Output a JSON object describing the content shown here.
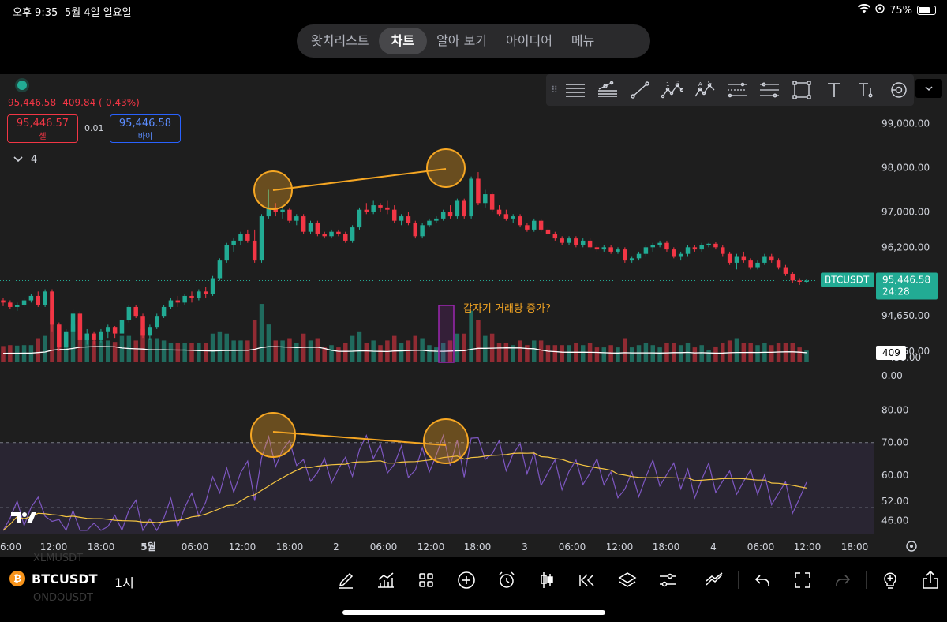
{
  "status_bar": {
    "time": "오후 9:35",
    "date": "5월 4일 일요일",
    "battery": "75%",
    "battery_level": 0.75
  },
  "top_nav": {
    "tabs": [
      "왓치리스트",
      "차트",
      "알아 보기",
      "아이디어",
      "메뉴"
    ],
    "active": "차트"
  },
  "quote": {
    "last": "95,446.58",
    "change": "-409.84 (-0.43%)",
    "sell_price": "95,446.57",
    "sell_label": "셀",
    "buy_price": "95,446.58",
    "buy_label": "바이",
    "spread": "0.01",
    "indicators_count": "4"
  },
  "symbol": {
    "name": "BTCUSDT",
    "interval": "1시",
    "ghost_above": "XLMUSDT",
    "ghost_below": "ONDOUSDT"
  },
  "icons": {
    "drawing_toolbar": [
      "grip-icon",
      "horizontal-lines-icon",
      "fib-retracement-icon",
      "trend-line-icon",
      "elliott-wave-icon",
      "abcd-pattern-icon",
      "parallel-channel-icon",
      "price-range-icon",
      "rectangle-icon",
      "text-icon",
      "price-note-icon",
      "eye-icon",
      "chevron-down-icon"
    ],
    "bottom_toolbar": [
      "pencil-icon",
      "indicators-icon",
      "grid-layout-icon",
      "plus-circle-icon",
      "alarm-icon",
      "candle-type-icon",
      "replay-icon",
      "layers-icon",
      "settings-sliders-icon",
      "ideas-icon",
      "undo-icon",
      "fullscreen-icon",
      "redo-icon",
      "lightbulb-icon",
      "share-icon"
    ]
  },
  "colors": {
    "up": "#22ab94",
    "down": "#f23645",
    "ma": "#ffffff",
    "rsi": "#7e57c2",
    "rsi_ma": "#f5c542",
    "annotation": "#f5a623",
    "highlight": "#9c27b0",
    "background": "#1e1e1e"
  },
  "chart_data": {
    "type": "candlestick",
    "title": "",
    "symbol": "BTCUSDT",
    "interval": "1H",
    "price_axis": {
      "ticks": [
        "99,000.00",
        "98,000.00",
        "97,000.00",
        "96,200.00",
        "94,650.00",
        "93,850.00"
      ],
      "labels_tail": [
        ".50.00",
        "0.00"
      ]
    },
    "last_price_label": {
      "symbol": "BTCUSDT",
      "price": "95,446.58",
      "countdown": "24:28"
    },
    "volume_label": "409",
    "x_axis_labels": [
      "6:00",
      "12:00",
      "18:00",
      "5월",
      "06:00",
      "12:00",
      "18:00",
      "2",
      "06:00",
      "12:00",
      "18:00",
      "3",
      "06:00",
      "12:00",
      "18:00",
      "4",
      "06:00",
      "12:00",
      "18:00"
    ],
    "candles_ohlc": [
      [
        95000,
        95050,
        94870,
        94950
      ],
      [
        94950,
        95000,
        94800,
        94850
      ],
      [
        94850,
        94950,
        94760,
        94900
      ],
      [
        94900,
        95050,
        94850,
        95000
      ],
      [
        95000,
        95150,
        94950,
        95100
      ],
      [
        95100,
        95200,
        94850,
        94900
      ],
      [
        94900,
        95250,
        94850,
        95200
      ],
      [
        95200,
        95250,
        94300,
        94450
      ],
      [
        94450,
        94500,
        93850,
        93950
      ],
      [
        93950,
        94350,
        93900,
        94300
      ],
      [
        94300,
        94800,
        94150,
        94700
      ],
      [
        94700,
        94750,
        94000,
        94100
      ],
      [
        94100,
        94350,
        94000,
        94250
      ],
      [
        94250,
        94300,
        94000,
        94100
      ],
      [
        94100,
        94350,
        94050,
        94300
      ],
      [
        94300,
        94450,
        94150,
        94400
      ],
      [
        94400,
        94420,
        94150,
        94250
      ],
      [
        94250,
        94600,
        94200,
        94550
      ],
      [
        94550,
        94900,
        94500,
        94850
      ],
      [
        94850,
        94900,
        94600,
        94650
      ],
      [
        94650,
        94700,
        94150,
        94200
      ],
      [
        94200,
        94450,
        94100,
        94400
      ],
      [
        94400,
        94700,
        94350,
        94650
      ],
      [
        94650,
        94900,
        94600,
        94850
      ],
      [
        94850,
        95050,
        94800,
        95000
      ],
      [
        95000,
        95100,
        94850,
        94950
      ],
      [
        94950,
        95150,
        94900,
        95100
      ],
      [
        95100,
        95200,
        94950,
        95050
      ],
      [
        95050,
        95250,
        95000,
        95200
      ],
      [
        95200,
        95300,
        95050,
        95150
      ],
      [
        95150,
        95550,
        95100,
        95500
      ],
      [
        95500,
        95950,
        95450,
        95900
      ],
      [
        95900,
        96300,
        95850,
        96250
      ],
      [
        96250,
        96400,
        96100,
        96350
      ],
      [
        96350,
        96550,
        96250,
        96500
      ],
      [
        96500,
        96600,
        96300,
        96350
      ],
      [
        96350,
        96600,
        95850,
        95900
      ],
      [
        95900,
        96950,
        95850,
        96900
      ],
      [
        96900,
        97500,
        96850,
        97100
      ],
      [
        97100,
        97200,
        96900,
        97000
      ],
      [
        97000,
        97150,
        96850,
        97050
      ],
      [
        97050,
        97100,
        96750,
        96800
      ],
      [
        96800,
        96950,
        96700,
        96900
      ],
      [
        96900,
        96950,
        96500,
        96550
      ],
      [
        96550,
        96800,
        96500,
        96750
      ],
      [
        96750,
        96800,
        96450,
        96500
      ],
      [
        96500,
        96550,
        96400,
        96450
      ],
      [
        96450,
        96600,
        96400,
        96550
      ],
      [
        96550,
        96600,
        96450,
        96500
      ],
      [
        96500,
        96550,
        96300,
        96350
      ],
      [
        96350,
        96700,
        96300,
        96650
      ],
      [
        96650,
        97100,
        96600,
        97050
      ],
      [
        97050,
        97200,
        96950,
        97000
      ],
      [
        97000,
        97250,
        96950,
        97150
      ],
      [
        97150,
        97200,
        97000,
        97100
      ],
      [
        97100,
        97250,
        96950,
        97050
      ],
      [
        97050,
        97150,
        96750,
        96800
      ],
      [
        96800,
        96950,
        96700,
        96900
      ],
      [
        96900,
        97000,
        96700,
        96750
      ],
      [
        96750,
        96800,
        96400,
        96450
      ],
      [
        96450,
        96750,
        96400,
        96700
      ],
      [
        96700,
        96850,
        96650,
        96800
      ],
      [
        96800,
        96900,
        96750,
        96850
      ],
      [
        96850,
        97050,
        96800,
        97000
      ],
      [
        97000,
        97150,
        96850,
        96900
      ],
      [
        96900,
        97300,
        96850,
        97250
      ],
      [
        97250,
        97300,
        96850,
        96900
      ],
      [
        96900,
        97800,
        96850,
        97750
      ],
      [
        97750,
        97900,
        97150,
        97200
      ],
      [
        97200,
        97500,
        97100,
        97400
      ],
      [
        97400,
        97450,
        97000,
        97050
      ],
      [
        97050,
        97150,
        96900,
        96950
      ],
      [
        96950,
        97050,
        96800,
        96850
      ],
      [
        96850,
        96950,
        96750,
        96900
      ],
      [
        96900,
        96950,
        96650,
        96700
      ],
      [
        96700,
        96750,
        96550,
        96600
      ],
      [
        96600,
        96850,
        96550,
        96800
      ],
      [
        96800,
        96850,
        96550,
        96600
      ],
      [
        96600,
        96650,
        96450,
        96500
      ],
      [
        96500,
        96550,
        96350,
        96400
      ],
      [
        96400,
        96450,
        96250,
        96300
      ],
      [
        96300,
        96450,
        96250,
        96400
      ],
      [
        96400,
        96450,
        96200,
        96250
      ],
      [
        96250,
        96400,
        96200,
        96350
      ],
      [
        96350,
        96400,
        96150,
        96200
      ],
      [
        96200,
        96250,
        96100,
        96150
      ],
      [
        96150,
        96250,
        96100,
        96200
      ],
      [
        96200,
        96250,
        96050,
        96100
      ],
      [
        96100,
        96200,
        96050,
        96150
      ],
      [
        96150,
        96200,
        95850,
        95900
      ],
      [
        95900,
        96000,
        95850,
        95950
      ],
      [
        95950,
        96100,
        95900,
        96050
      ],
      [
        96050,
        96250,
        96000,
        96200
      ],
      [
        96200,
        96300,
        96100,
        96250
      ],
      [
        96250,
        96350,
        96200,
        96300
      ],
      [
        96300,
        96350,
        96100,
        96150
      ],
      [
        96150,
        96200,
        95950,
        96000
      ],
      [
        96000,
        96100,
        95900,
        96050
      ],
      [
        96050,
        96250,
        96000,
        96200
      ],
      [
        96200,
        96250,
        96100,
        96150
      ],
      [
        96150,
        96300,
        96100,
        96250
      ],
      [
        96250,
        96300,
        96200,
        96280
      ],
      [
        96280,
        96320,
        96150,
        96200
      ],
      [
        96200,
        96250,
        96000,
        96050
      ],
      [
        96050,
        96100,
        95800,
        95850
      ],
      [
        95850,
        96050,
        95700,
        96000
      ],
      [
        96000,
        96100,
        95850,
        95900
      ],
      [
        95900,
        95950,
        95700,
        95750
      ],
      [
        95750,
        95900,
        95700,
        95850
      ],
      [
        95850,
        96050,
        95800,
        96000
      ],
      [
        96000,
        96050,
        95850,
        95900
      ],
      [
        95900,
        95950,
        95700,
        95750
      ],
      [
        95750,
        95800,
        95550,
        95600
      ],
      [
        95600,
        95650,
        95400,
        95450
      ],
      [
        95450,
        95500,
        95350,
        95420
      ],
      [
        95420,
        95480,
        95400,
        95446
      ]
    ],
    "volume_hint": "bars in lower pane with white moving average",
    "rsi": {
      "y_ticks": [
        "80.00",
        "70.00",
        "60.00",
        "52.00",
        "46.00"
      ],
      "bands": [
        70,
        50
      ]
    },
    "annotations": [
      {
        "type": "note",
        "text": "갑자기 거래량 증가?"
      }
    ]
  }
}
